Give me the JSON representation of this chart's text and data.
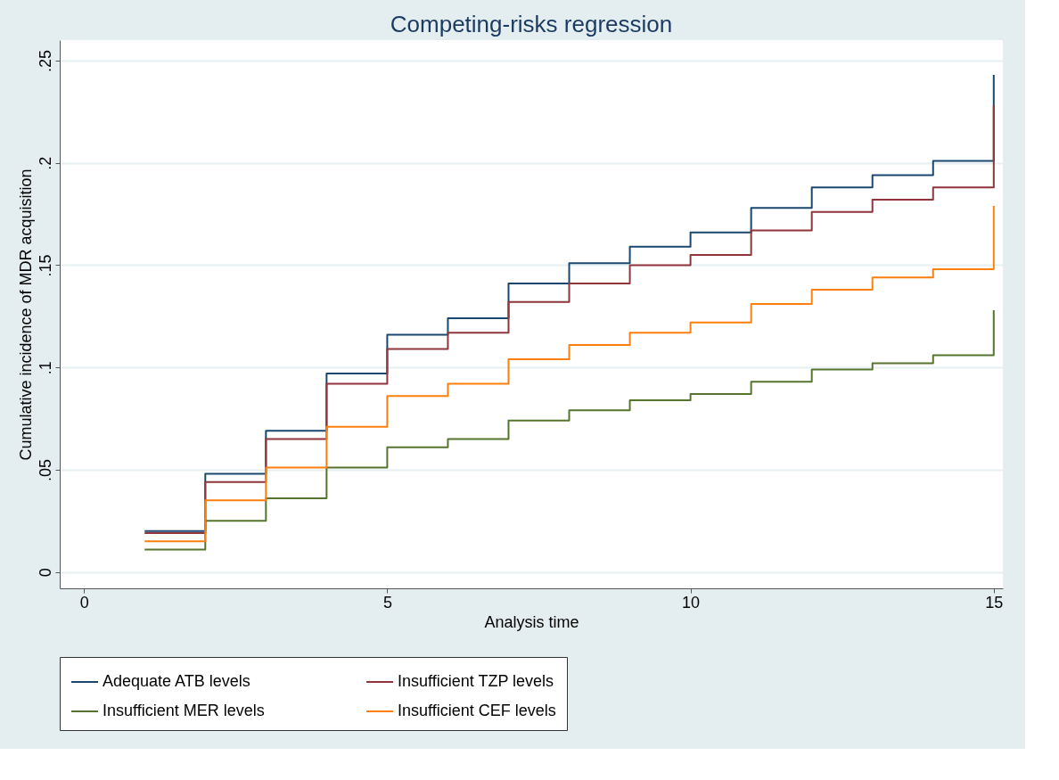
{
  "chart_data": {
    "type": "step",
    "title": "Competing-risks regression",
    "xlabel": "Analysis time",
    "ylabel": "Cumulative incidence of MDR acquisition",
    "x": [
      1,
      2,
      3,
      4,
      5,
      6,
      7,
      8,
      9,
      10,
      11,
      12,
      13,
      14,
      15
    ],
    "series": [
      {
        "name": "Adequate ATB levels",
        "color": "#1a476f",
        "values": [
          0.02,
          0.048,
          0.069,
          0.097,
          0.116,
          0.124,
          0.141,
          0.151,
          0.159,
          0.166,
          0.178,
          0.188,
          0.194,
          0.201,
          0.243
        ]
      },
      {
        "name": "Insufficient TZP levels",
        "color": "#90353b",
        "values": [
          0.019,
          0.044,
          0.065,
          0.092,
          0.109,
          0.117,
          0.132,
          0.141,
          0.15,
          0.155,
          0.167,
          0.176,
          0.182,
          0.188,
          0.228
        ]
      },
      {
        "name": "Insufficient MER levels",
        "color": "#55752f",
        "values": [
          0.011,
          0.025,
          0.036,
          0.051,
          0.061,
          0.065,
          0.074,
          0.079,
          0.084,
          0.087,
          0.093,
          0.099,
          0.102,
          0.106,
          0.128
        ]
      },
      {
        "name": "Insufficient CEF levels",
        "color": "#ff7f0e",
        "values": [
          0.015,
          0.035,
          0.051,
          0.071,
          0.086,
          0.092,
          0.104,
          0.111,
          0.117,
          0.122,
          0.131,
          0.138,
          0.144,
          0.148,
          0.179
        ]
      }
    ],
    "xlim": [
      -0.4,
      15.15
    ],
    "xticks": [
      0,
      5,
      10,
      15
    ],
    "ylim": [
      -0.008,
      0.26
    ],
    "yticks": [
      {
        "value": 0,
        "label": "0"
      },
      {
        "value": 0.05,
        "label": ".05"
      },
      {
        "value": 0.1,
        "label": ".1"
      },
      {
        "value": 0.15,
        "label": ".15"
      },
      {
        "value": 0.2,
        "label": ".2"
      },
      {
        "value": 0.25,
        "label": ".25"
      }
    ],
    "grid": "y",
    "legend": "bottom"
  }
}
